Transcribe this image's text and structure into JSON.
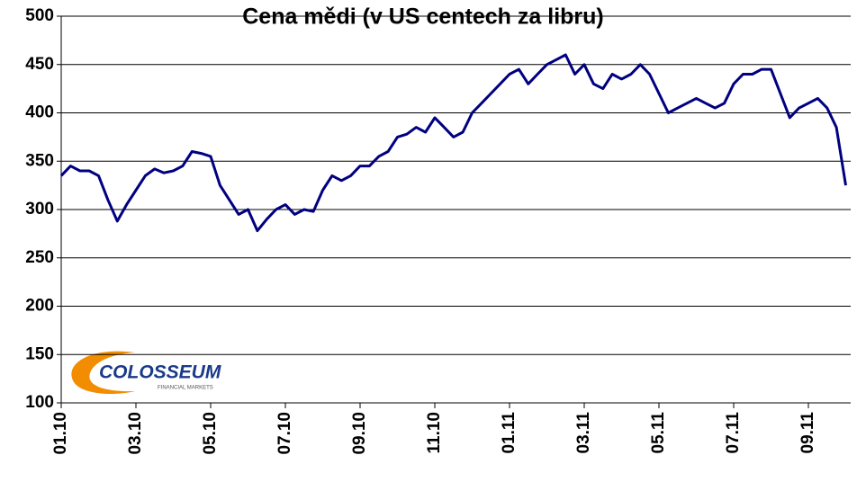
{
  "chart_data": {
    "type": "line",
    "title": "Cena mědi (v US centech za libru)",
    "categories": [
      "01.10",
      null,
      null,
      null,
      null,
      null,
      null,
      null,
      "03.10",
      null,
      null,
      null,
      null,
      null,
      null,
      null,
      "05.10",
      null,
      null,
      null,
      null,
      null,
      null,
      null,
      "07.10",
      null,
      null,
      null,
      null,
      null,
      null,
      null,
      "09.10",
      null,
      null,
      null,
      null,
      null,
      null,
      null,
      "11.10",
      null,
      null,
      null,
      null,
      null,
      null,
      null,
      "01.11",
      null,
      null,
      null,
      null,
      null,
      null,
      null,
      "03.11",
      null,
      null,
      null,
      null,
      null,
      null,
      null,
      "05.11",
      null,
      null,
      null,
      null,
      null,
      null,
      null,
      "07.11",
      null,
      null,
      null,
      null,
      null,
      null,
      null,
      "09.11",
      null,
      null,
      null,
      null
    ],
    "series": [
      {
        "color": "#000080",
        "values": [
          335,
          345,
          340,
          340,
          335,
          310,
          288,
          305,
          320,
          335,
          342,
          338,
          340,
          345,
          360,
          358,
          355,
          325,
          310,
          295,
          300,
          278,
          290,
          300,
          305,
          295,
          300,
          298,
          320,
          335,
          330,
          335,
          345,
          345,
          355,
          360,
          375,
          378,
          385,
          380,
          395,
          385,
          375,
          380,
          400,
          410,
          420,
          430,
          440,
          445,
          430,
          440,
          450,
          455,
          460,
          440,
          450,
          430,
          425,
          440,
          435,
          440,
          450,
          440,
          420,
          400,
          405,
          410,
          415,
          410,
          405,
          410,
          430,
          440,
          440,
          445,
          445,
          420,
          395,
          405,
          410,
          415,
          405,
          385,
          325
        ]
      }
    ],
    "ylim": [
      100,
      500
    ],
    "yticks": [
      100,
      150,
      200,
      250,
      300,
      350,
      400,
      450,
      500
    ],
    "grid": true,
    "logo": {
      "name": "COLOSSEUM",
      "tagline": "FINANCIAL MARKETS"
    }
  }
}
